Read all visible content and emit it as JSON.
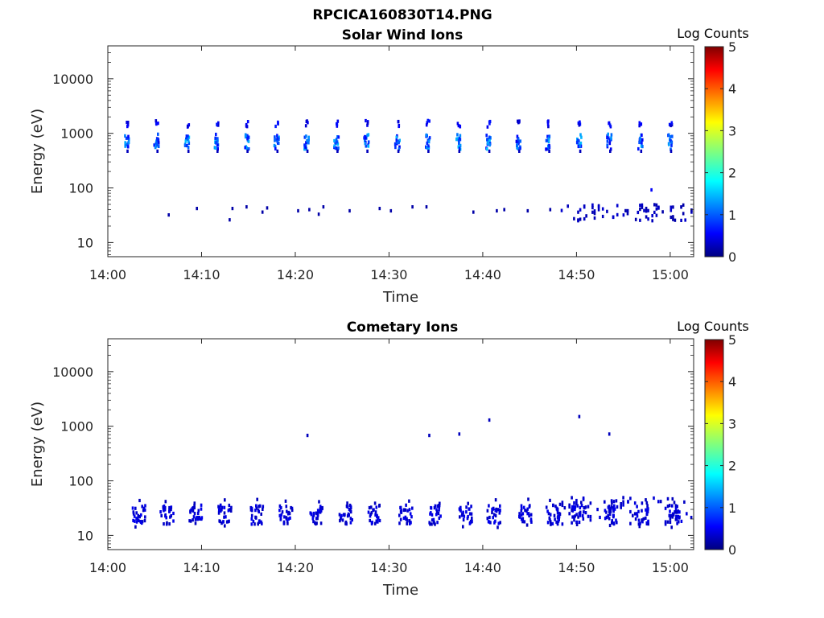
{
  "figure": {
    "title": "RPCICA160830T14.PNG"
  },
  "chart_data": [
    {
      "type": "heatmap",
      "title": "Solar Wind Ions",
      "xlabel": "Time",
      "ylabel": "Energy (eV)",
      "x_ticks": [
        "14:00",
        "14:10",
        "14:20",
        "14:30",
        "14:40",
        "14:50",
        "15:00"
      ],
      "y_ticks": [
        "10",
        "100",
        "1000",
        "10000"
      ],
      "y_scale": "log",
      "ylim": [
        5.5,
        40000
      ],
      "xlim_minutes": [
        0,
        62.5
      ],
      "colorbar": {
        "label": "Log Counts",
        "range": [
          0,
          5
        ],
        "ticks": [
          "0",
          "1",
          "2",
          "3",
          "4",
          "5"
        ]
      },
      "pulse_times_min": [
        2.0,
        5.2,
        8.5,
        11.6,
        14.8,
        18.0,
        21.2,
        24.4,
        27.6,
        30.9,
        34.1,
        37.4,
        40.6,
        43.8,
        47.0,
        50.3,
        53.5,
        56.8,
        60.0
      ],
      "pulse_peak_eV": 700,
      "pulse_upper_eV": 1500,
      "pulse_peak_log_counts": 1.6,
      "low_energy_points": [
        {
          "t": 6.5,
          "e": 32,
          "c": 0.2
        },
        {
          "t": 9.5,
          "e": 42,
          "c": 0.2
        },
        {
          "t": 13.0,
          "e": 26,
          "c": 0.2
        },
        {
          "t": 13.3,
          "e": 42,
          "c": 0.2
        },
        {
          "t": 14.8,
          "e": 45,
          "c": 0.2
        },
        {
          "t": 16.5,
          "e": 36,
          "c": 0.2
        },
        {
          "t": 17.0,
          "e": 43,
          "c": 0.2
        },
        {
          "t": 20.3,
          "e": 38,
          "c": 0.2
        },
        {
          "t": 21.5,
          "e": 40,
          "c": 0.2
        },
        {
          "t": 22.5,
          "e": 33,
          "c": 0.2
        },
        {
          "t": 23.0,
          "e": 45,
          "c": 0.2
        },
        {
          "t": 25.8,
          "e": 38,
          "c": 0.2
        },
        {
          "t": 29.0,
          "e": 42,
          "c": 0.2
        },
        {
          "t": 30.2,
          "e": 38,
          "c": 0.2
        },
        {
          "t": 32.5,
          "e": 45,
          "c": 0.2
        },
        {
          "t": 34.0,
          "e": 45,
          "c": 0.2
        },
        {
          "t": 39.0,
          "e": 36,
          "c": 0.2
        },
        {
          "t": 41.5,
          "e": 38,
          "c": 0.2
        },
        {
          "t": 42.3,
          "e": 40,
          "c": 0.2
        },
        {
          "t": 44.8,
          "e": 38,
          "c": 0.2
        },
        {
          "t": 47.2,
          "e": 40,
          "c": 0.2
        },
        {
          "t": 58.0,
          "e": 92,
          "c": 0.6
        }
      ],
      "dense_low_range_min": [
        48.2,
        62.5
      ]
    },
    {
      "type": "heatmap",
      "title": "Cometary Ions",
      "xlabel": "Time",
      "ylabel": "Energy (eV)",
      "x_ticks": [
        "14:00",
        "14:10",
        "14:20",
        "14:30",
        "14:40",
        "14:50",
        "15:00"
      ],
      "y_ticks": [
        "10",
        "100",
        "1000",
        "10000"
      ],
      "y_scale": "log",
      "ylim": [
        5.5,
        40000
      ],
      "xlim_minutes": [
        0,
        62.5
      ],
      "colorbar": {
        "label": "Log Counts",
        "range": [
          0,
          5
        ],
        "ticks": [
          "0",
          "1",
          "2",
          "3",
          "4",
          "5"
        ]
      },
      "cluster_times_min": [
        3.3,
        6.3,
        9.4,
        12.5,
        15.9,
        19.0,
        22.3,
        25.4,
        28.5,
        31.8,
        35.0,
        38.2,
        41.2,
        44.5,
        47.5,
        50.2,
        53.7,
        57.0,
        60.5
      ],
      "cluster_energy_eV": 24,
      "cluster_log_counts": 0.3,
      "sparse_high_points": [
        {
          "t": 21.3,
          "e": 680,
          "c": 0.3
        },
        {
          "t": 34.3,
          "e": 680,
          "c": 0.3
        },
        {
          "t": 37.5,
          "e": 720,
          "c": 0.3
        },
        {
          "t": 40.7,
          "e": 1300,
          "c": 0.3
        },
        {
          "t": 50.3,
          "e": 1500,
          "c": 0.3
        },
        {
          "t": 53.5,
          "e": 720,
          "c": 0.3
        }
      ]
    }
  ]
}
